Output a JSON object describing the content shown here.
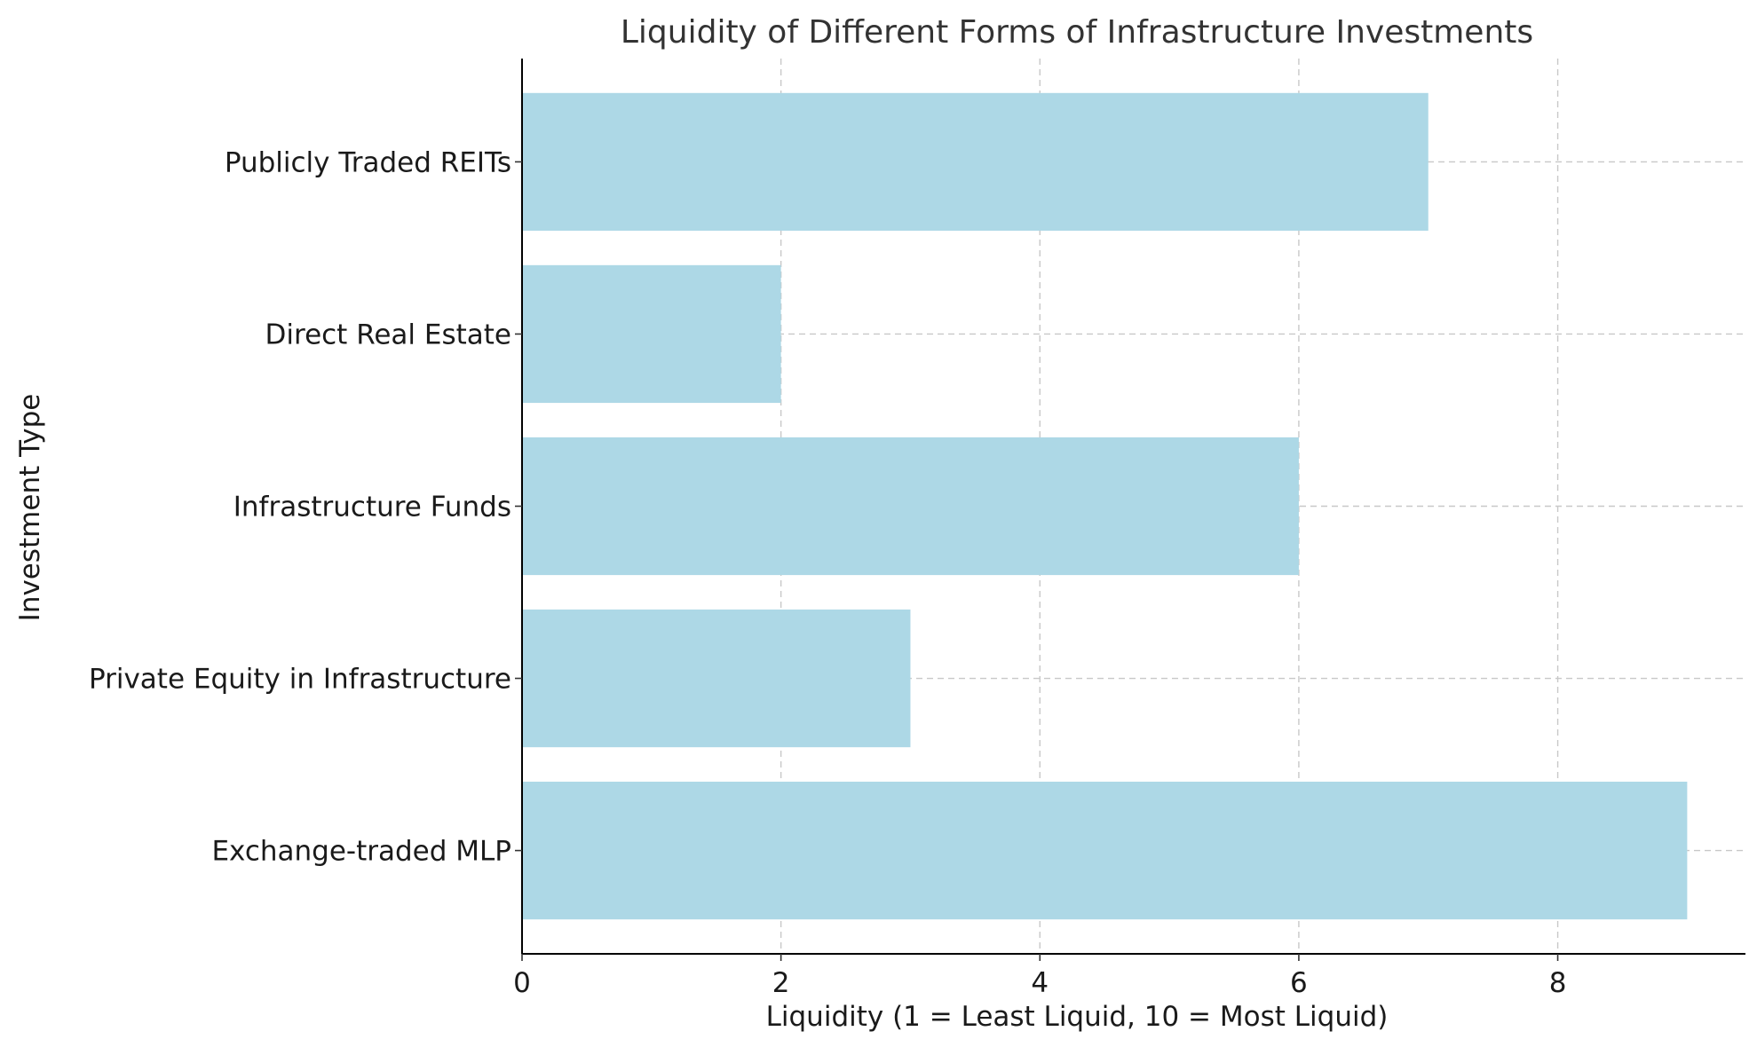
{
  "chart_data": {
    "type": "bar",
    "orientation": "horizontal",
    "title": "Liquidity of Different Forms of Infrastructure Investments",
    "xlabel": "Liquidity (1 = Least Liquid, 10 = Most Liquid)",
    "ylabel": "Investment Type",
    "categories": [
      "Exchange-traded MLP",
      "Private Equity in Infrastructure",
      "Infrastructure Funds",
      "Direct Real Estate",
      "Publicly Traded REITs"
    ],
    "values": [
      9,
      3,
      6,
      2,
      7
    ],
    "xlim": [
      0,
      9.45
    ],
    "xticks": [
      0,
      2,
      4,
      6,
      8
    ],
    "grid": true,
    "bar_color": "#add8e6",
    "grid_color": "#c8c8c8"
  }
}
